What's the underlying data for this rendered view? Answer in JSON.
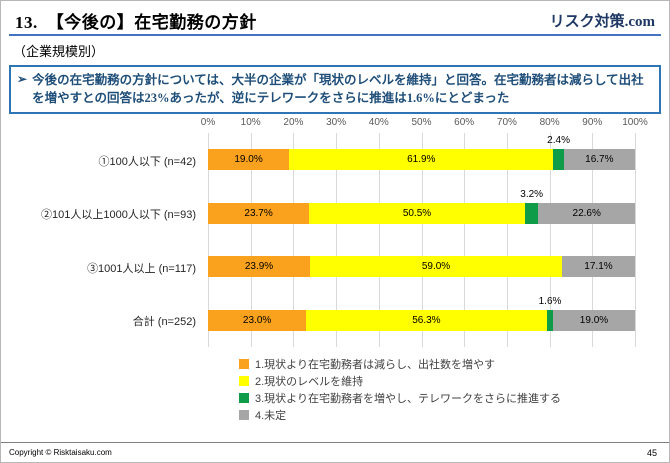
{
  "slide": {
    "title": "13.　【今後の】在宅勤務の方針",
    "brand": "リスク対策.com",
    "subtitle": "（企業規模別）",
    "callout": {
      "bullet": "➢",
      "text": "今後の在宅勤務の方針については、大半の企業が「現状のレベルを維持」と回答。在宅勤務者は減らして出社を増やすとの回答は23%あったが、逆にテレワークをさらに推進は1.6%にとどまった"
    },
    "footer": {
      "copyright": "Copyright © Risktaisaku.com",
      "page": "45"
    }
  },
  "chart_data": {
    "type": "bar",
    "orientation": "horizontal",
    "stacked": true,
    "title": "",
    "xlim": [
      0,
      100
    ],
    "x_ticks": [
      "0%",
      "10%",
      "20%",
      "30%",
      "40%",
      "50%",
      "60%",
      "70%",
      "80%",
      "90%",
      "100%"
    ],
    "grid": true,
    "legend_position": "bottom",
    "categories": [
      "①100人以下 (n=42)",
      "②101人以上1000人以下 (n=93)",
      "③1001人以上 (n=117)",
      "合計 (n=252)"
    ],
    "series": [
      {
        "name": "1.現状より在宅勤務者は減らし、出社数を増やす",
        "color": "#FAA21D",
        "values": [
          19.0,
          23.7,
          23.9,
          23.0
        ]
      },
      {
        "name": "2.現状のレベルを維持",
        "color": "#FFFF00",
        "values": [
          61.9,
          50.5,
          59.0,
          56.3
        ]
      },
      {
        "name": "3.現状より在宅勤務者を増やし、テレワークをさらに推進する",
        "color": "#0E9C49",
        "labels_outside": true,
        "values": [
          2.4,
          3.2,
          0.0,
          1.6
        ]
      },
      {
        "name": "4.未定",
        "color": "#A6A6A6",
        "values": [
          16.7,
          22.6,
          17.1,
          19.0
        ]
      }
    ]
  }
}
